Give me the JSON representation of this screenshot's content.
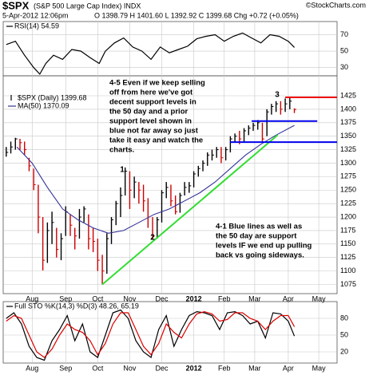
{
  "header": {
    "symbol": "$SPX",
    "name": "(S&P 500 Large Cap Index) INDX",
    "source": "©StockCharts.com",
    "date": "5-Apr-2012 12:06pm",
    "quote": "O 1398.79 H 1401.60 L 1392.92 C 1399.68 Chg +0.72 (+0.05%)"
  },
  "chart_data": [
    {
      "type": "line",
      "xlim": [
        -19,
        200
      ],
      "ylim": [
        20,
        86
      ],
      "yticks": [
        30,
        50,
        70
      ],
      "grid": true,
      "x": [
        -17,
        -11,
        -5,
        1,
        5,
        9,
        14,
        20,
        26,
        32,
        38,
        44,
        48,
        54,
        60,
        66,
        72,
        78,
        84,
        90,
        96,
        102,
        108,
        114,
        120,
        126,
        132,
        138,
        144,
        150,
        156,
        162,
        168,
        172
      ],
      "series": [
        {
          "name": "RSI(14) 54.59",
          "color": "#000000",
          "values": [
            58,
            62,
            45,
            30,
            22,
            35,
            45,
            40,
            52,
            50,
            42,
            35,
            50,
            60,
            66,
            55,
            50,
            40,
            55,
            48,
            52,
            56,
            65,
            68,
            70,
            62,
            68,
            72,
            66,
            60,
            70,
            68,
            62,
            54.59
          ]
        }
      ]
    },
    {
      "type": "ohlc",
      "xlim": [
        -19,
        200
      ],
      "ylim": [
        1058,
        1462
      ],
      "yticks": [
        1075,
        1100,
        1125,
        1150,
        1175,
        1200,
        1225,
        1250,
        1275,
        1300,
        1325,
        1350,
        1375,
        1400,
        1425
      ],
      "grid": true,
      "xticks": [
        {
          "value": 0,
          "label": "Aug"
        },
        {
          "value": 22,
          "label": "Sep"
        },
        {
          "value": 43,
          "label": "Oct"
        },
        {
          "value": 64,
          "label": "Nov"
        },
        {
          "value": 85,
          "label": "Dec"
        },
        {
          "value": 106,
          "label": "2012"
        },
        {
          "value": 126,
          "label": "Feb"
        },
        {
          "value": 146,
          "label": "Mar"
        },
        {
          "value": 168,
          "label": "Apr"
        },
        {
          "value": 188,
          "label": "May"
        }
      ],
      "x": [
        -17,
        -14,
        -11,
        -8,
        -5,
        -2,
        1,
        4,
        7,
        10,
        13,
        16,
        19,
        22,
        25,
        28,
        31,
        34,
        37,
        40,
        43,
        46,
        49,
        52,
        55,
        58,
        61,
        64,
        67,
        70,
        73,
        76,
        79,
        82,
        85,
        88,
        91,
        94,
        97,
        100,
        103,
        106,
        109,
        112,
        115,
        118,
        121,
        124,
        127,
        130,
        133,
        136,
        139,
        142,
        145,
        148,
        151,
        154,
        157,
        160,
        163,
        166,
        169,
        172
      ],
      "series": [
        {
          "name": "$SPX (Daily) 1399.68",
          "up_color": "#000000",
          "down_color": "#cc0000",
          "high": [
            1330,
            1340,
            1347,
            1345,
            1340,
            1310,
            1290,
            1260,
            1200,
            1190,
            1210,
            1180,
            1170,
            1220,
            1205,
            1180,
            1215,
            1220,
            1205,
            1180,
            1160,
            1130,
            1170,
            1200,
            1230,
            1255,
            1292,
            1285,
            1275,
            1265,
            1260,
            1235,
            1200,
            1200,
            1250,
            1265,
            1260,
            1240,
            1245,
            1265,
            1265,
            1285,
            1295,
            1305,
            1320,
            1325,
            1330,
            1330,
            1330,
            1350,
            1355,
            1360,
            1365,
            1370,
            1375,
            1380,
            1375,
            1400,
            1410,
            1415,
            1415,
            1420,
            1422,
            1401.6
          ],
          "low": [
            1312,
            1318,
            1325,
            1325,
            1315,
            1285,
            1250,
            1170,
            1101,
            1115,
            1150,
            1125,
            1120,
            1165,
            1165,
            1140,
            1160,
            1190,
            1140,
            1135,
            1100,
            1075,
            1095,
            1150,
            1185,
            1200,
            1240,
            1215,
            1235,
            1225,
            1210,
            1180,
            1158,
            1160,
            1190,
            1235,
            1220,
            1205,
            1208,
            1240,
            1245,
            1255,
            1275,
            1285,
            1295,
            1305,
            1310,
            1300,
            1305,
            1320,
            1340,
            1335,
            1340,
            1352,
            1360,
            1362,
            1340,
            1350,
            1390,
            1395,
            1390,
            1395,
            1400,
            1392.92
          ],
          "close": [
            1320,
            1330,
            1345,
            1338,
            1325,
            1295,
            1260,
            1200,
            1120,
            1175,
            1190,
            1140,
            1160,
            1210,
            1185,
            1165,
            1200,
            1215,
            1160,
            1155,
            1120,
            1100,
            1160,
            1195,
            1225,
            1240,
            1285,
            1250,
            1265,
            1250,
            1230,
            1200,
            1165,
            1195,
            1245,
            1255,
            1230,
            1210,
            1240,
            1255,
            1258,
            1280,
            1290,
            1300,
            1315,
            1315,
            1325,
            1310,
            1325,
            1345,
            1350,
            1345,
            1360,
            1365,
            1370,
            1375,
            1345,
            1395,
            1405,
            1410,
            1400,
            1410,
            1415,
            1399.68
          ]
        }
      ],
      "overlays": [
        {
          "name": "MA(50) 1370.09",
          "color": "#333399",
          "x": [
            -10,
            0,
            10,
            20,
            30,
            40,
            50,
            60,
            70,
            80,
            90,
            100,
            110,
            120,
            130,
            140,
            150,
            160,
            172
          ],
          "values": [
            1330,
            1300,
            1255,
            1215,
            1195,
            1180,
            1170,
            1175,
            1190,
            1205,
            1215,
            1230,
            1245,
            1265,
            1290,
            1315,
            1335,
            1352,
            1370.09
          ]
        }
      ],
      "lines": [
        {
          "color": "#33dd33",
          "x": [
            46,
            161
          ],
          "values": [
            1075,
            1352
          ]
        },
        {
          "color": "#0000ee",
          "x": [
            144,
            187
          ],
          "values": [
            1378,
            1378
          ]
        },
        {
          "color": "#0000ee",
          "x": [
            130,
            200
          ],
          "values": [
            1339,
            1339
          ]
        },
        {
          "color": "#ee0000",
          "x": [
            166,
            200
          ],
          "values": [
            1422,
            1422
          ]
        }
      ],
      "annotations": [
        {
          "color": "#dd0000",
          "lines": [
            "4-5 Even if we keep selling",
            "off from here we've got",
            "decent support levels in",
            "the 50 day and a prior",
            "support level shown in",
            "blue not far away so just",
            "take it easy and watch the",
            "charts."
          ]
        },
        {
          "color": "#0000cc",
          "lines": [
            "4-1 Blue lines as well as",
            "the 50 day are support",
            "levels IF we end up pulling",
            "back vs going sideways."
          ]
        }
      ],
      "markers": [
        "1",
        "2",
        "3"
      ]
    },
    {
      "type": "line",
      "xlim": [
        -19,
        200
      ],
      "ylim": [
        0,
        110
      ],
      "yticks": [
        20,
        50,
        80
      ],
      "grid": true,
      "xticks": [
        {
          "value": 0,
          "label": "Aug"
        },
        {
          "value": 22,
          "label": "Sep"
        },
        {
          "value": 43,
          "label": "Oct"
        },
        {
          "value": 64,
          "label": "Nov"
        },
        {
          "value": 85,
          "label": "Dec"
        },
        {
          "value": 106,
          "label": "2012"
        },
        {
          "value": 126,
          "label": "Feb"
        },
        {
          "value": 146,
          "label": "Mar"
        },
        {
          "value": 168,
          "label": "Apr"
        },
        {
          "value": 188,
          "label": "May"
        }
      ],
      "legend": "Full STO %K(14,3) %D(3) 48.26, 65.19",
      "x": [
        -17,
        -12,
        -7,
        -2,
        3,
        8,
        13,
        18,
        23,
        28,
        33,
        38,
        43,
        48,
        53,
        58,
        63,
        68,
        73,
        78,
        83,
        88,
        93,
        98,
        103,
        108,
        113,
        118,
        123,
        128,
        133,
        138,
        143,
        148,
        153,
        158,
        163,
        168,
        172
      ],
      "series": [
        {
          "color": "#000000",
          "values": [
            80,
            90,
            70,
            30,
            10,
            5,
            40,
            60,
            85,
            40,
            70,
            20,
            10,
            50,
            90,
            95,
            80,
            40,
            20,
            10,
            60,
            85,
            30,
            60,
            85,
            92,
            90,
            85,
            60,
            90,
            92,
            85,
            70,
            75,
            45,
            90,
            88,
            75,
            48.26
          ]
        },
        {
          "color": "#dd0000",
          "values": [
            75,
            85,
            80,
            50,
            20,
            10,
            25,
            50,
            70,
            60,
            55,
            40,
            15,
            35,
            70,
            90,
            90,
            60,
            30,
            15,
            35,
            70,
            55,
            45,
            70,
            88,
            92,
            88,
            75,
            78,
            90,
            90,
            80,
            75,
            60,
            75,
            85,
            85,
            65.19
          ]
        }
      ]
    }
  ]
}
